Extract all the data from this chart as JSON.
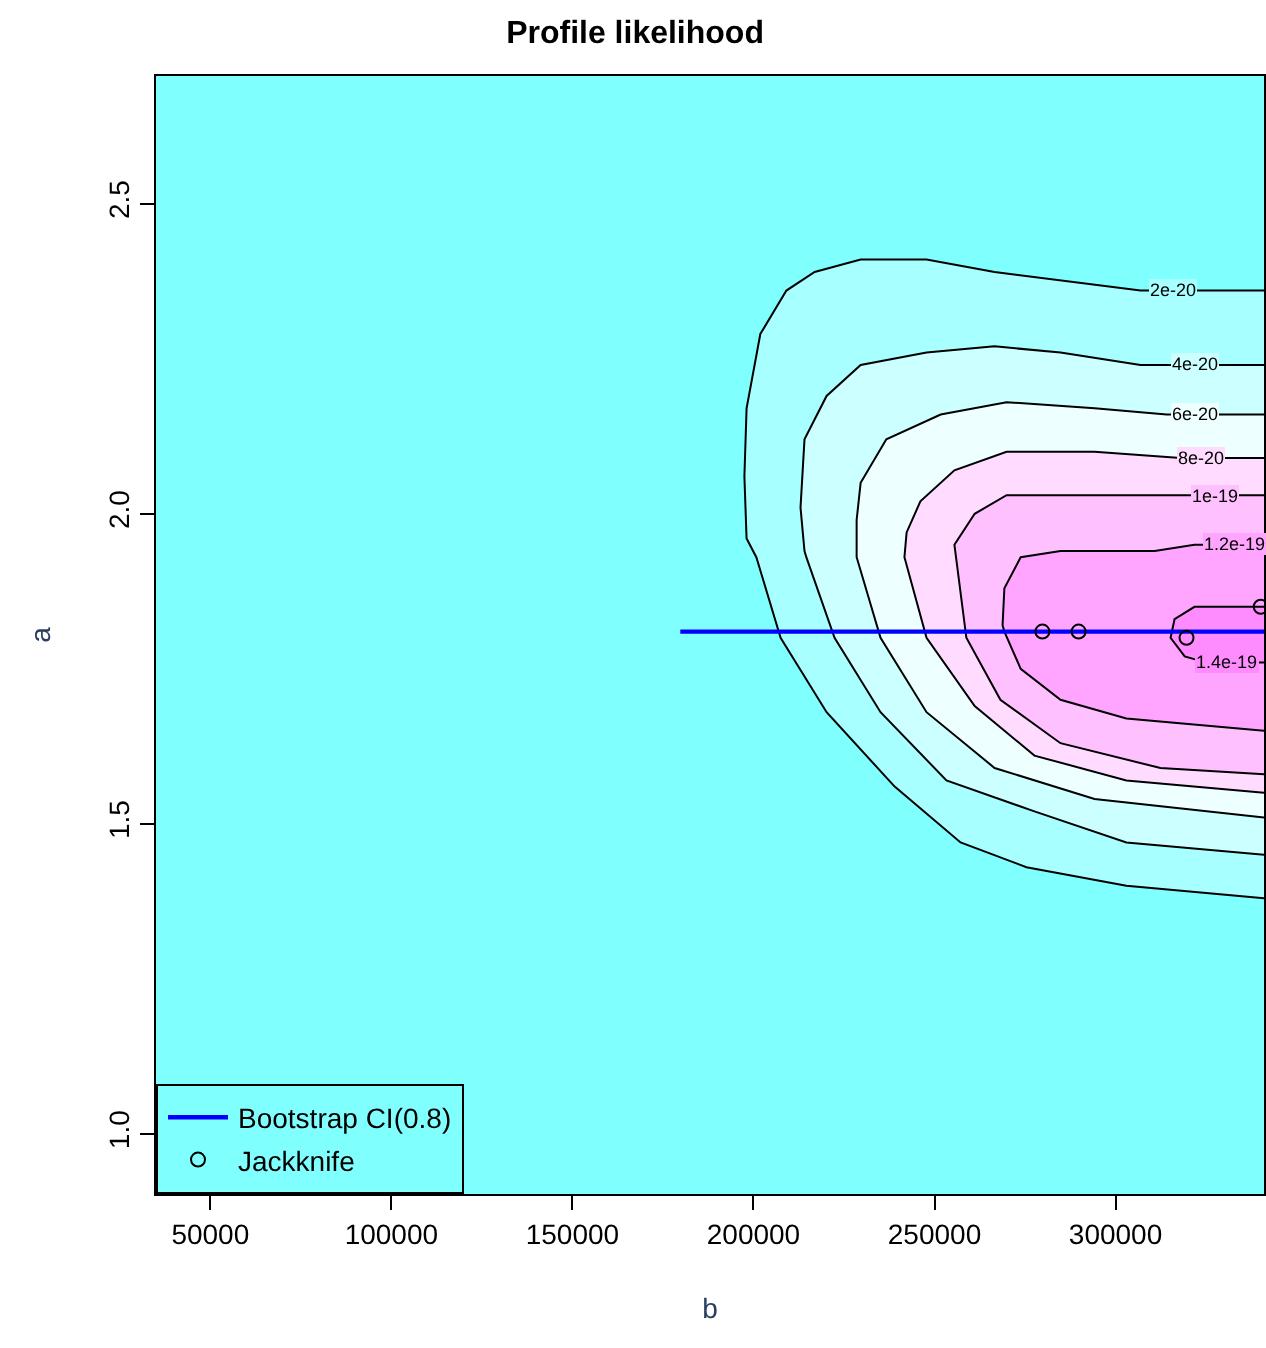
{
  "chart_data": {
    "type": "line",
    "title": "Profile likelihood",
    "xlabel": "b",
    "ylabel": "a",
    "xlim": [
      35000,
      341000
    ],
    "ylim": [
      0.903,
      2.706
    ],
    "xticks": [
      50000,
      100000,
      150000,
      200000,
      250000,
      300000
    ],
    "yticks": [
      {
        "value": 1.0,
        "label": "1.0"
      },
      {
        "value": 1.5,
        "label": "1.5"
      },
      {
        "value": 2.0,
        "label": "2.0"
      },
      {
        "value": 2.5,
        "label": "2.5"
      }
    ],
    "grid": false,
    "legend": "bottom left",
    "series": [
      {
        "color": "#000000",
        "x": [
          341000,
          315800,
          306900,
          266600,
          247800,
          229600,
          216900,
          209100,
          201900,
          198100,
          197500,
          198100,
          200800,
          207500,
          220200,
          239000,
          257200,
          275400,
          303000,
          341000
        ],
        "values": [
          2.36,
          2.36,
          2.36,
          2.39,
          2.41,
          2.41,
          2.39,
          2.36,
          2.29,
          2.17,
          2.06,
          1.96,
          1.93,
          1.8,
          1.68,
          1.56,
          1.47,
          1.43,
          1.4,
          1.38
        ]
      },
      {
        "color": "#000000",
        "x": [
          341000,
          321800,
          306900,
          284800,
          266600,
          247800,
          229600,
          220200,
          214100,
          213000,
          214100,
          214600,
          222400,
          235100,
          253300,
          277600,
          303000,
          341000
        ],
        "values": [
          2.24,
          2.24,
          2.24,
          2.26,
          2.27,
          2.26,
          2.24,
          2.19,
          2.12,
          2.01,
          1.94,
          1.93,
          1.8,
          1.68,
          1.57,
          1.52,
          1.47,
          1.45
        ]
      },
      {
        "color": "#000000",
        "x": [
          341000,
          321800,
          314100,
          294200,
          269900,
          251700,
          236700,
          229600,
          228500,
          228500,
          235100,
          247800,
          266600,
          294200,
          341000
        ],
        "values": [
          2.16,
          2.16,
          2.16,
          2.17,
          2.18,
          2.16,
          2.12,
          2.05,
          1.99,
          1.93,
          1.8,
          1.68,
          1.59,
          1.54,
          1.51
        ]
      },
      {
        "color": "#000000",
        "x": [
          341000,
          323500,
          318000,
          294200,
          269900,
          255500,
          246100,
          242300,
          241700,
          247800,
          261100,
          277600,
          303000,
          341000
        ],
        "values": [
          2.09,
          2.09,
          2.09,
          2.1,
          2.1,
          2.07,
          2.02,
          1.97,
          1.93,
          1.8,
          1.69,
          1.61,
          1.57,
          1.55
        ]
      },
      {
        "color": "#000000",
        "x": [
          341000,
          327400,
          318000,
          306900,
          284800,
          269900,
          261100,
          255500,
          258800,
          268200,
          284800,
          312400,
          341000
        ],
        "values": [
          2.03,
          2.03,
          2.03,
          2.03,
          2.03,
          2.03,
          2.0,
          1.95,
          1.8,
          1.7,
          1.63,
          1.59,
          1.58
        ]
      },
      {
        "color": "#000000",
        "x": [
          341000,
          332900,
          321800,
          310800,
          284800,
          273800,
          269300,
          268800,
          269300,
          273800,
          284800,
          303000,
          341000
        ],
        "values": [
          1.95,
          1.95,
          1.95,
          1.94,
          1.94,
          1.93,
          1.88,
          1.82,
          1.81,
          1.75,
          1.7,
          1.67,
          1.65
        ]
      },
      {
        "color": "#000000",
        "x": [
          341000,
          330700,
          325100,
          319100,
          315200,
          316300,
          321800,
          341000
        ],
        "values": [
          1.76,
          1.76,
          1.76,
          1.77,
          1.8,
          1.83,
          1.85,
          1.85
        ]
      },
      {
        "name": "Bootstrap CI(0.8)",
        "color": "#0000ff",
        "x": [
          179800,
          341000
        ],
        "values": [
          1.81,
          1.81
        ]
      },
      {
        "name": "Jackknife",
        "type": "scatter",
        "marker": "circle",
        "color": "#000000",
        "x": [
          279800,
          289800,
          319600,
          340100
        ],
        "values": [
          1.81,
          1.81,
          1.8,
          1.85
        ]
      }
    ],
    "annotations": [
      {
        "text": "2e-20",
        "x": 315800,
        "y": 2.36
      },
      {
        "text": "4e-20",
        "x": 321800,
        "y": 2.24
      },
      {
        "text": "6e-20",
        "x": 321800,
        "y": 2.16
      },
      {
        "text": "8e-20",
        "x": 323500,
        "y": 2.09
      },
      {
        "text": "1e-19",
        "x": 327400,
        "y": 2.03
      },
      {
        "text": "1.2e-19",
        "x": 332900,
        "y": 1.95
      },
      {
        "text": "1.4e-19",
        "x": 330700,
        "y": 1.76
      }
    ]
  }
}
